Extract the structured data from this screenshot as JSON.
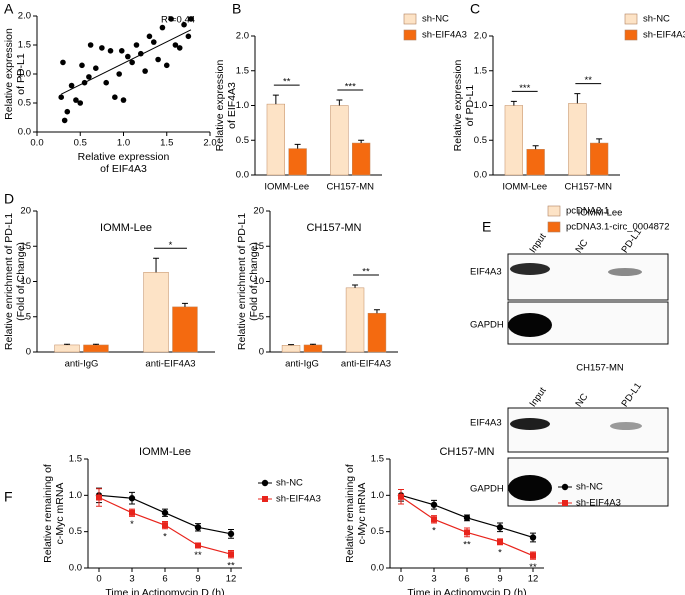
{
  "chart_data": [
    {
      "type": "scatter",
      "panel": "A",
      "annotation": "R²=0.44",
      "xlabel": [
        "Relative expression",
        "of EIF4A3"
      ],
      "ylabel": [
        "Relative expression",
        "of PD-L1"
      ],
      "x": [
        0.28,
        0.3,
        0.35,
        0.32,
        0.4,
        0.45,
        0.5,
        0.52,
        0.55,
        0.6,
        0.62,
        0.68,
        0.75,
        0.8,
        0.85,
        0.9,
        0.95,
        0.98,
        1.0,
        1.05,
        1.1,
        1.15,
        1.2,
        1.25,
        1.3,
        1.35,
        1.4,
        1.45,
        1.5,
        1.55,
        1.6,
        1.65,
        1.7,
        1.75,
        1.78
      ],
      "values": [
        0.6,
        1.2,
        0.35,
        0.2,
        0.8,
        0.55,
        0.5,
        1.15,
        0.85,
        0.95,
        1.5,
        1.1,
        1.45,
        0.85,
        1.4,
        0.6,
        1.0,
        1.4,
        0.55,
        1.3,
        1.2,
        1.5,
        1.35,
        1.05,
        1.65,
        1.55,
        1.25,
        1.8,
        1.15,
        1.95,
        1.5,
        1.45,
        1.85,
        1.65,
        1.95
      ],
      "color": "#000000",
      "fit_line": true,
      "xlim": [
        0,
        2
      ],
      "xticks": [
        {
          "value": 0,
          "label": "0.0"
        },
        0.5,
        {
          "value": 1,
          "label": "1.0"
        },
        1.5,
        {
          "value": 2,
          "label": "2.0"
        }
      ],
      "ylim": [
        0,
        2
      ],
      "yticks": [
        {
          "value": 0,
          "label": "0.0"
        },
        0.5,
        {
          "value": 1,
          "label": "1.0"
        },
        1.5,
        {
          "value": 2,
          "label": "2.0"
        }
      ]
    },
    {
      "type": "bar",
      "panel": "B",
      "ylabel": [
        "Relative expression",
        "of EIF4A3"
      ],
      "categories": [
        "IOMM-Lee",
        "CH157-MN"
      ],
      "series": [
        {
          "name": "sh-NC",
          "color": "#fde3c6",
          "values": [
            1.02,
            1.0
          ],
          "errors": [
            0.13,
            0.08
          ]
        },
        {
          "name": "sh-EIF4A3",
          "color": "#f46a10",
          "values": [
            0.38,
            0.46
          ],
          "errors": [
            0.06,
            0.04
          ]
        }
      ],
      "significance": [
        "**",
        "***"
      ],
      "ylim": [
        0,
        2
      ],
      "yticks": [
        {
          "value": 0,
          "label": "0.0"
        },
        0.5,
        {
          "value": 1,
          "label": "1.0"
        },
        1.5,
        {
          "value": 2,
          "label": "2.0"
        }
      ]
    },
    {
      "type": "bar",
      "panel": "C",
      "ylabel": [
        "Relative expression",
        "of PD-L1"
      ],
      "categories": [
        "IOMM-Lee",
        "CH157-MN"
      ],
      "series": [
        {
          "name": "sh-NC",
          "color": "#fde3c6",
          "values": [
            1.0,
            1.03
          ],
          "errors": [
            0.06,
            0.14
          ]
        },
        {
          "name": "sh-EIF4A3",
          "color": "#f46a10",
          "values": [
            0.37,
            0.46
          ],
          "errors": [
            0.05,
            0.06
          ]
        }
      ],
      "significance": [
        "***",
        "**"
      ],
      "ylim": [
        0,
        2
      ],
      "yticks": [
        {
          "value": 0,
          "label": "0.0"
        },
        0.5,
        {
          "value": 1,
          "label": "1.0"
        },
        1.5,
        {
          "value": 2,
          "label": "2.0"
        }
      ]
    },
    {
      "type": "bar",
      "panel": "D",
      "title": "IOMM-Lee",
      "ylabel": [
        "Relative enrichment of PD-L1",
        "(Fold of Change)"
      ],
      "categories": [
        "anti-IgG",
        "anti-EIF4A3"
      ],
      "series": [
        {
          "color": "#fde3c6",
          "values": [
            1.0,
            11.3
          ],
          "errors": [
            0.1,
            2.0
          ]
        },
        {
          "color": "#f46a10",
          "values": [
            1.0,
            6.4
          ],
          "errors": [
            0.1,
            0.5
          ]
        }
      ],
      "significance": [
        null,
        "*"
      ],
      "ylim": [
        0,
        20
      ],
      "yticks": [
        0,
        5,
        10,
        15,
        20
      ]
    },
    {
      "type": "bar",
      "title": "CH157-MN",
      "ylabel": [
        "Relative enrichment of PD-L1",
        "(Fold of Change)"
      ],
      "categories": [
        "anti-IgG",
        "anti-EIF4A3"
      ],
      "series": [
        {
          "name": "pcDNA3.1",
          "color": "#fde3c6",
          "values": [
            0.95,
            9.1
          ],
          "errors": [
            0.1,
            0.4
          ]
        },
        {
          "name": "pcDNA3.1-circ_0004872",
          "color": "#f46a10",
          "values": [
            1.0,
            5.5
          ],
          "errors": [
            0.1,
            0.5
          ]
        }
      ],
      "significance": [
        null,
        "**"
      ],
      "ylim": [
        0,
        20
      ],
      "yticks": [
        0,
        5,
        10,
        15,
        20
      ]
    },
    {
      "type": "line",
      "panel": "F",
      "title": "IOMM-Lee",
      "xlabel": [
        "Time in Actinomycin D (h)"
      ],
      "ylabel": [
        "Relative remaining of",
        "c-Myc mRNA"
      ],
      "x": [
        0,
        3,
        6,
        9,
        12
      ],
      "series": [
        {
          "name": "sh-NC",
          "color": "#000000",
          "marker": "circle",
          "values": [
            1.0,
            0.96,
            0.76,
            0.56,
            0.47
          ],
          "errors": [
            0.1,
            0.08,
            0.05,
            0.05,
            0.06
          ]
        },
        {
          "name": "sh-EIF4A3",
          "color": "#e8241c",
          "marker": "square",
          "values": [
            0.97,
            0.76,
            0.59,
            0.31,
            0.19
          ],
          "errors": [
            0.12,
            0.05,
            0.05,
            0.03,
            0.05
          ]
        }
      ],
      "significance": [
        null,
        "*",
        "*",
        "**",
        "**"
      ],
      "xlim": [
        -1,
        13
      ],
      "xticks": [
        0,
        3,
        6,
        9,
        12
      ],
      "ylim": [
        0,
        1.5
      ],
      "yticks": [
        {
          "value": 0,
          "label": "0.0"
        },
        0.5,
        {
          "value": 1,
          "label": "1.0"
        },
        1.5
      ]
    },
    {
      "type": "line",
      "title": "CH157-MN",
      "xlabel": [
        "Time in Actinomycin D (h)"
      ],
      "ylabel": [
        "Relative remaining of",
        "c-Myc mRNA"
      ],
      "x": [
        0,
        3,
        6,
        9,
        12
      ],
      "series": [
        {
          "name": "sh-NC",
          "color": "#000000",
          "marker": "circle",
          "values": [
            1.0,
            0.87,
            0.69,
            0.56,
            0.42
          ],
          "errors": [
            0.08,
            0.06,
            0.04,
            0.06,
            0.06
          ]
        },
        {
          "name": "sh-EIF4A3",
          "color": "#e8241c",
          "marker": "square",
          "values": [
            0.98,
            0.67,
            0.49,
            0.36,
            0.17
          ],
          "errors": [
            0.1,
            0.05,
            0.06,
            0.04,
            0.05
          ]
        }
      ],
      "significance": [
        null,
        "*",
        "**",
        "*",
        "**"
      ],
      "xlim": [
        -1,
        13
      ],
      "xticks": [
        0,
        3,
        6,
        9,
        12
      ],
      "ylim": [
        0,
        1.5
      ],
      "yticks": [
        {
          "value": 0,
          "label": "0.0"
        },
        0.5,
        {
          "value": 1,
          "label": "1.0"
        },
        1.5
      ]
    }
  ],
  "blot": {
    "panel": "E",
    "groups": [
      {
        "title": "IOMM-Lee",
        "lanes": [
          "Input",
          "NC",
          "PD-L1"
        ],
        "rows": [
          "EIF4A3",
          "GAPDH"
        ]
      },
      {
        "title": "CH157-MN",
        "lanes": [
          "Input",
          "NC",
          "PD-L1"
        ],
        "rows": [
          "EIF4A3",
          "GAPDH"
        ]
      }
    ]
  }
}
